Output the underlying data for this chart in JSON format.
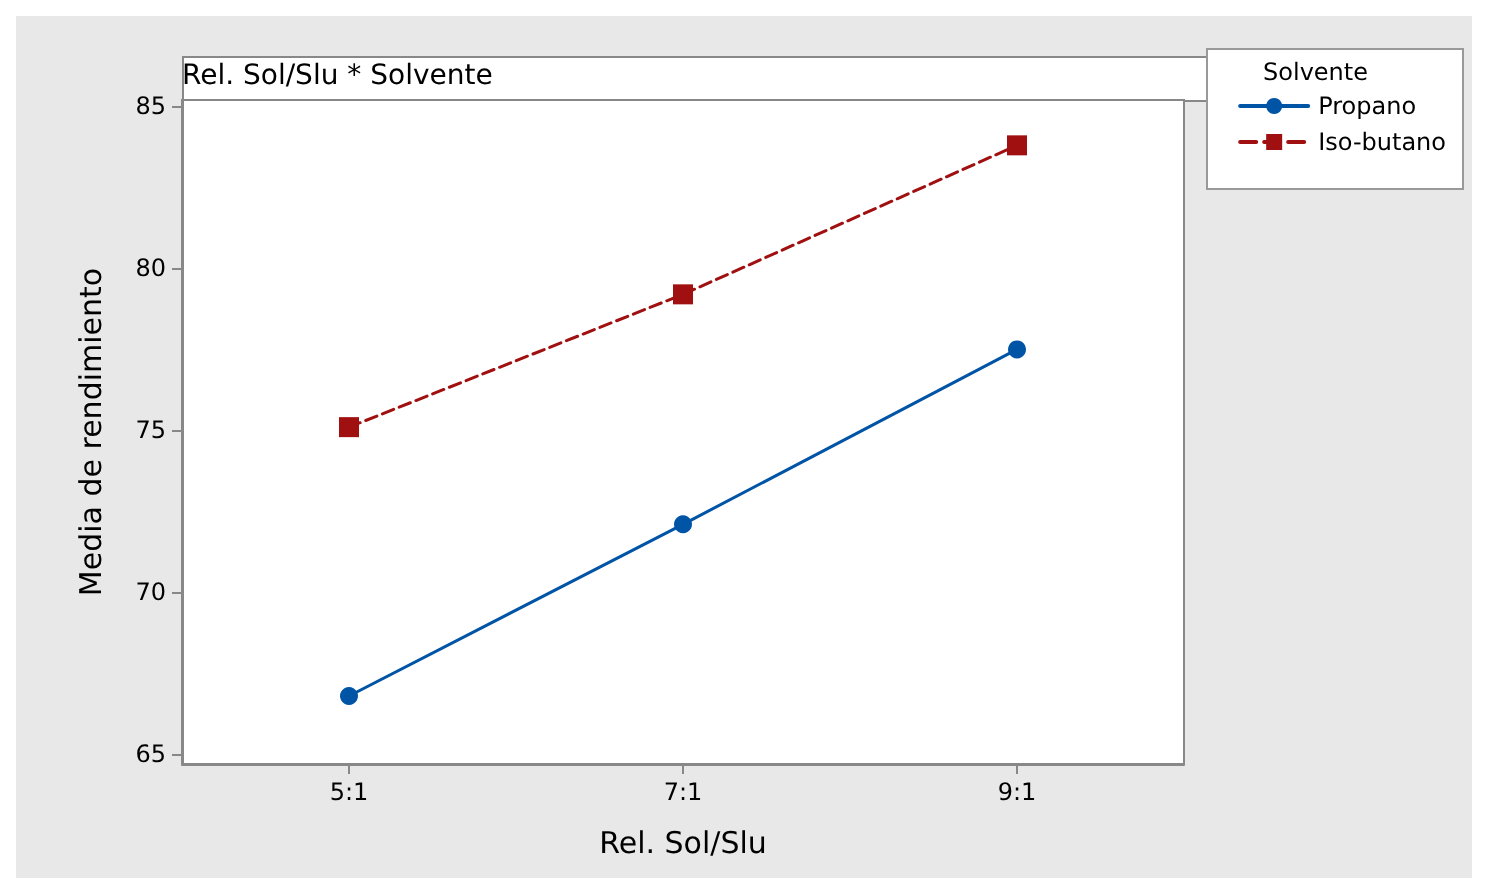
{
  "chart_data": {
    "type": "line",
    "title": "Rel. Sol/Slu * Solvente",
    "xlabel": "Rel. Sol/Slu",
    "ylabel": "Media de rendimiento",
    "legend_title": "Solvente",
    "legend": "top right",
    "grid": false,
    "categories": [
      "5:1",
      "7:1",
      "9:1"
    ],
    "ylim": [
      64.7,
      85.2
    ],
    "yticks": [
      65,
      70,
      75,
      80,
      85
    ],
    "series": [
      {
        "name": "Propano",
        "color": "#0054a6",
        "marker": "circle",
        "line_style": "solid",
        "values": [
          66.8,
          72.1,
          77.5
        ]
      },
      {
        "name": "Iso-butano",
        "color": "#a01010",
        "marker": "square",
        "line_style": "dashed",
        "values": [
          75.1,
          79.2,
          83.8
        ]
      }
    ]
  }
}
